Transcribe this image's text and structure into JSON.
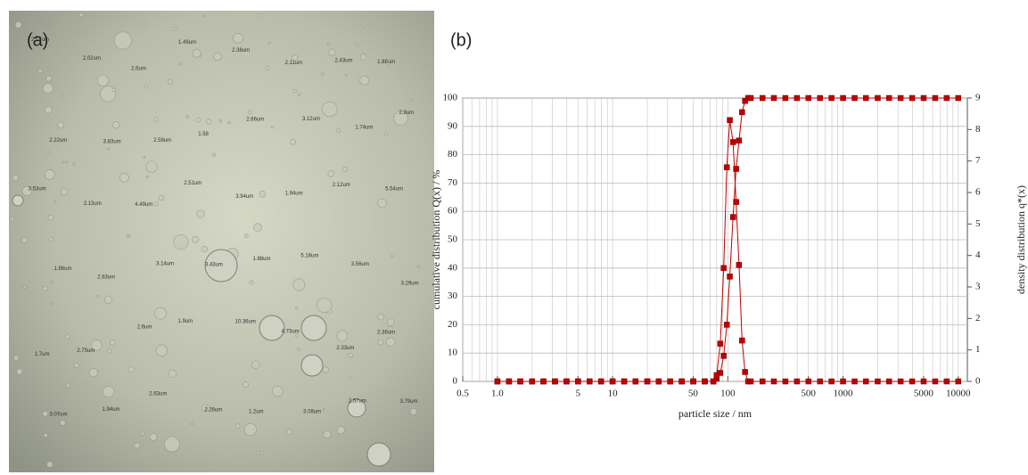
{
  "photo": {
    "label": "(a)",
    "droplet_labels": [
      "2.17um",
      "2.02um",
      "2.6um",
      "1.49um",
      "2.38um",
      "2.11um",
      "2.43um",
      "1.88um",
      "2.22um",
      "3.83um",
      "2.59um",
      "1.58",
      "2.66um",
      "3.12um",
      "1.74um",
      "2.8um",
      "3.53um",
      "2.13um",
      "4.49um",
      "2.51um",
      "3.94um",
      "1.94um",
      "2.12um",
      "5.54um",
      "1.86um",
      "2.83um",
      "3.14um",
      "3.43um",
      "1.88um",
      "5.18um",
      "3.56um",
      "3.29um",
      "1.7um",
      "2.75um",
      "2.6um",
      "1.9um",
      "10.36um",
      "4.73um",
      "2.33um",
      "2.36um",
      "3.07um",
      "1.94um",
      "2.63um",
      "2.26um",
      "1.2um",
      "3.08um",
      "2.57um",
      "3.79um"
    ]
  },
  "chart_data": {
    "type": "line",
    "label": "(b)",
    "xlabel": "particle size / nm",
    "ylabel": "cumulative distribution Q(x) / %",
    "y2label": "density distribution q*(x)",
    "xscale": "log",
    "grid": true,
    "xlim": [
      0.5,
      12000
    ],
    "xticks": [
      0.5,
      {
        "value": 1,
        "label": "1.0"
      },
      5,
      10,
      50,
      100,
      500,
      1000,
      5000,
      10000
    ],
    "ylim": [
      0,
      100
    ],
    "yticks": [
      0,
      10,
      20,
      30,
      40,
      50,
      60,
      70,
      80,
      90,
      100
    ],
    "y2lim": [
      0,
      9
    ],
    "y2ticks": [
      0,
      1,
      2,
      3,
      4,
      5,
      6,
      7,
      8,
      9
    ],
    "x": [
      1,
      1.26,
      1.58,
      2,
      2.51,
      3.16,
      3.98,
      5.01,
      6.31,
      7.94,
      10,
      12.6,
      15.8,
      20,
      25.1,
      31.6,
      39.8,
      50.1,
      63.1,
      75,
      80,
      86,
      92,
      98,
      104,
      111,
      118,
      125,
      133,
      141,
      150,
      158,
      200,
      251,
      316,
      398,
      501,
      631,
      794,
      1000,
      1260,
      1580,
      2000,
      2510,
      3160,
      3980,
      5010,
      6310,
      7940,
      10000
    ],
    "series": [
      {
        "color": "#c00000",
        "values": [
          0,
          0,
          0,
          0,
          0,
          0,
          0,
          0,
          0,
          0,
          0,
          0,
          0,
          0,
          0,
          0,
          0,
          0,
          0,
          0,
          1,
          3,
          9,
          20,
          37,
          58,
          75,
          85,
          95,
          99,
          100,
          100,
          100,
          100,
          100,
          100,
          100,
          100,
          100,
          100,
          100,
          100,
          100,
          100,
          100,
          100,
          100,
          100,
          100,
          100
        ]
      },
      {
        "color": "#c00000",
        "axis": "y2",
        "values": [
          0,
          0,
          0,
          0,
          0,
          0,
          0,
          0,
          0,
          0,
          0,
          0,
          0,
          0,
          0,
          0,
          0,
          0,
          0,
          0,
          0.2,
          1.2,
          3.6,
          6.8,
          8.3,
          7.6,
          5.7,
          3.7,
          1.3,
          0.3,
          0,
          0,
          0,
          0,
          0,
          0,
          0,
          0,
          0,
          0,
          0,
          0,
          0,
          0,
          0,
          0,
          0,
          0,
          0,
          0
        ]
      }
    ]
  }
}
